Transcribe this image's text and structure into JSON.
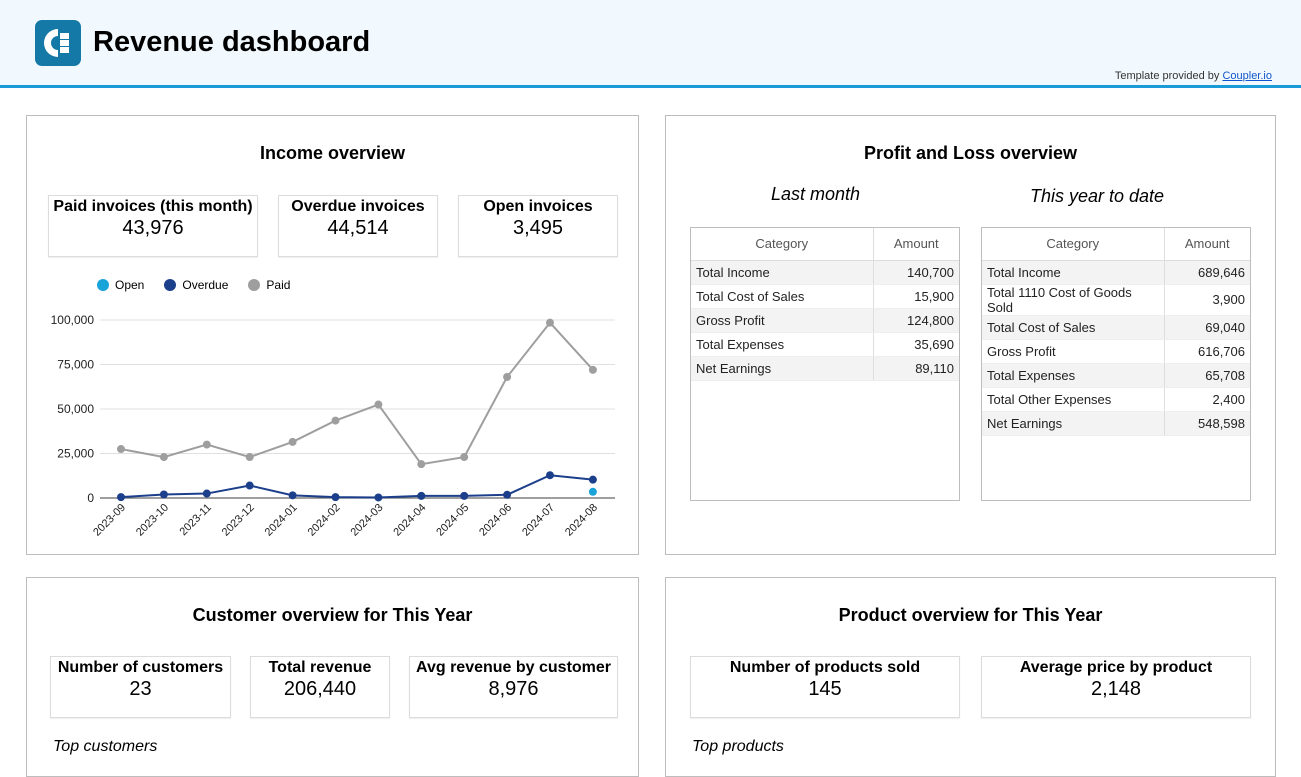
{
  "header": {
    "title": "Revenue dashboard",
    "credit_prefix": "Template provided by",
    "credit_link": "Coupler.io",
    "accent": "#1a9bd7"
  },
  "income": {
    "title": "Income overview",
    "kpis": [
      {
        "label": "Paid invoices (this month)",
        "value": "43,976"
      },
      {
        "label": "Overdue invoices",
        "value": "44,514"
      },
      {
        "label": "Open invoices",
        "value": "3,495"
      }
    ]
  },
  "pnl": {
    "title": "Profit and Loss overview",
    "last_month": {
      "subtitle": "Last month",
      "headers": [
        "Category",
        "Amount"
      ],
      "rows": [
        [
          "Total Income",
          "140,700"
        ],
        [
          "Total Cost of Sales",
          "15,900"
        ],
        [
          "Gross Profit",
          "124,800"
        ],
        [
          "Total Expenses",
          "35,690"
        ],
        [
          "Net Earnings",
          "89,110"
        ]
      ]
    },
    "ytd": {
      "subtitle": "This year to date",
      "headers": [
        "Category",
        "Amount"
      ],
      "rows": [
        [
          "Total Income",
          "689,646"
        ],
        [
          "Total 1110 Cost of Goods Sold",
          "3,900"
        ],
        [
          "Total Cost of Sales",
          "69,040"
        ],
        [
          "Gross Profit",
          "616,706"
        ],
        [
          "Total Expenses",
          "65,708"
        ],
        [
          "Total Other Expenses",
          "2,400"
        ],
        [
          "Net Earnings",
          "548,598"
        ]
      ]
    }
  },
  "customers": {
    "title": "Customer overview for This Year",
    "kpis": [
      {
        "label": "Number of customers",
        "value": "23"
      },
      {
        "label": "Total revenue",
        "value": "206,440"
      },
      {
        "label": "Avg revenue by customer",
        "value": "8,976"
      }
    ],
    "section": "Top customers"
  },
  "products": {
    "title": "Product overview for This Year",
    "kpis": [
      {
        "label": "Number of products sold",
        "value": "145"
      },
      {
        "label": "Average price by product",
        "value": "2,148"
      }
    ],
    "section": "Top products"
  },
  "chart_data": {
    "type": "line",
    "categories": [
      "2023-09",
      "2023-10",
      "2023-11",
      "2023-12",
      "2024-01",
      "2024-02",
      "2024-03",
      "2024-04",
      "2024-05",
      "2024-06",
      "2024-07",
      "2024-08"
    ],
    "ylim": [
      0,
      100000
    ],
    "yticks": [
      "0",
      "25,000",
      "50,000",
      "75,000",
      "100,000"
    ],
    "grid": true,
    "legend": "top-left",
    "series": [
      {
        "name": "Open",
        "color": "#1aa3d9",
        "values": [
          null,
          null,
          null,
          null,
          null,
          null,
          null,
          null,
          null,
          null,
          null,
          3495
        ]
      },
      {
        "name": "Overdue",
        "color": "#1c3f8c",
        "values": [
          500,
          2000,
          2500,
          7000,
          1500,
          500,
          300,
          1200,
          1200,
          1800,
          12800,
          10300
        ]
      },
      {
        "name": "Paid",
        "color": "#9e9e9e",
        "values": [
          27500,
          23000,
          30000,
          23000,
          31500,
          43500,
          52500,
          19000,
          23000,
          68000,
          98500,
          72000
        ]
      }
    ]
  }
}
